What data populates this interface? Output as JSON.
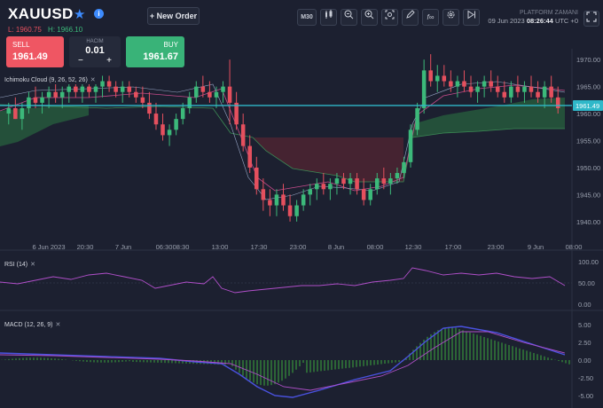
{
  "header": {
    "symbol": "XAUUSD",
    "low_label": "L: 1960.75",
    "high_label": "H: 1966.10",
    "new_order_label": "+ New Order",
    "sell": {
      "label": "SELL",
      "price": "1961.49"
    },
    "buy": {
      "label": "BUY",
      "price": "1961.67"
    },
    "lot": {
      "label": "HACIM",
      "value": "0.01",
      "minus": "−",
      "plus": "+"
    },
    "timeframe": "M30",
    "platform_label": "PLATFORM ZAMANI",
    "platform_date": "09 Jun 2023",
    "platform_clock": "08:26:44",
    "platform_tz": "UTC +0"
  },
  "toolbar_icons": [
    "timeframe-button",
    "candle-type-icon",
    "zoom-out-icon",
    "zoom-in-icon",
    "screenshot-icon",
    "draw-pencil-icon",
    "indicator-fx-icon",
    "settings-gear-icon",
    "replay-icon",
    "fullscreen-icon"
  ],
  "colors": {
    "background": "#1c2030",
    "bull": "#3cb97a",
    "bear": "#e5505e",
    "current_price_line": "#2fb8c9",
    "rsi_line": "#b04fc9",
    "macd_line": "#4a52e0",
    "signal_line": "#b04fc9",
    "hist": "#3caa3c"
  },
  "price_pane": {
    "indicator_label": "Ichimoku Cloud (9, 26, 52, 26)",
    "current_price": "1961.49",
    "y_ticks": [
      "1970.00",
      "1965.00",
      "1960.00",
      "1955.00",
      "1950.00",
      "1945.00",
      "1940.00"
    ],
    "x_ticks": [
      "6 Jun 2023",
      "20:30",
      "7 Jun",
      "06:30",
      "08:30",
      "13:00",
      "17:30",
      "23:00",
      "8 Jun",
      "08:00",
      "12:30",
      "17:00",
      "23:00",
      "9 Jun",
      "08:00"
    ]
  },
  "rsi_pane": {
    "label": "RSI (14)",
    "y_ticks": [
      "100.00",
      "50.00",
      "0.00"
    ]
  },
  "macd_pane": {
    "label": "MACD (12, 26, 9)",
    "y_ticks": [
      "5.00",
      "2.50",
      "0.00",
      "-2.50",
      "-5.00"
    ]
  },
  "chart_data": {
    "type": "candlestick",
    "symbol": "XAUUSD",
    "interval": "M30",
    "ylim": [
      1938,
      1972
    ],
    "candles": [
      [
        1960,
        1962,
        1958,
        1961
      ],
      [
        1961,
        1963,
        1959,
        1959
      ],
      [
        1959,
        1962,
        1957,
        1961
      ],
      [
        1961,
        1964,
        1960,
        1963
      ],
      [
        1963,
        1965,
        1961,
        1962
      ],
      [
        1962,
        1964,
        1960,
        1963
      ],
      [
        1963,
        1965,
        1961,
        1964
      ],
      [
        1964,
        1966,
        1962,
        1963
      ],
      [
        1963,
        1965,
        1961,
        1964
      ],
      [
        1964,
        1966,
        1962,
        1965
      ],
      [
        1965,
        1967,
        1963,
        1964
      ],
      [
        1964,
        1966,
        1962,
        1965
      ],
      [
        1965,
        1967,
        1963,
        1964
      ],
      [
        1964,
        1966,
        1962,
        1965
      ],
      [
        1965,
        1967,
        1963,
        1966
      ],
      [
        1966,
        1967,
        1964,
        1965
      ],
      [
        1965,
        1966,
        1963,
        1964
      ],
      [
        1964,
        1966,
        1962,
        1965
      ],
      [
        1965,
        1966,
        1963,
        1964
      ],
      [
        1964,
        1965,
        1962,
        1963
      ],
      [
        1963,
        1965,
        1961,
        1962
      ],
      [
        1962,
        1964,
        1959,
        1960
      ],
      [
        1960,
        1962,
        1957,
        1958
      ],
      [
        1958,
        1960,
        1955,
        1956
      ],
      [
        1956,
        1958,
        1954,
        1957
      ],
      [
        1957,
        1960,
        1956,
        1959
      ],
      [
        1959,
        1962,
        1958,
        1961
      ],
      [
        1961,
        1964,
        1960,
        1963
      ],
      [
        1963,
        1966,
        1962,
        1965
      ],
      [
        1965,
        1967,
        1963,
        1964
      ],
      [
        1964,
        1966,
        1962,
        1963
      ],
      [
        1963,
        1965,
        1961,
        1964
      ],
      [
        1964,
        1966,
        1962,
        1965
      ],
      [
        1965,
        1970,
        1958,
        1962
      ],
      [
        1962,
        1964,
        1957,
        1958
      ],
      [
        1958,
        1960,
        1953,
        1954
      ],
      [
        1954,
        1956,
        1949,
        1950
      ],
      [
        1950,
        1952,
        1945,
        1946
      ],
      [
        1946,
        1948,
        1942,
        1944
      ],
      [
        1944,
        1946,
        1941,
        1943
      ],
      [
        1943,
        1946,
        1941,
        1945
      ],
      [
        1945,
        1947,
        1942,
        1943
      ],
      [
        1943,
        1945,
        1940,
        1941
      ],
      [
        1941,
        1944,
        1940,
        1943
      ],
      [
        1943,
        1946,
        1942,
        1945
      ],
      [
        1945,
        1947,
        1943,
        1946
      ],
      [
        1946,
        1948,
        1944,
        1947
      ],
      [
        1947,
        1949,
        1945,
        1946
      ],
      [
        1946,
        1948,
        1944,
        1947
      ],
      [
        1947,
        1949,
        1945,
        1948
      ],
      [
        1948,
        1949,
        1946,
        1947
      ],
      [
        1947,
        1949,
        1945,
        1948
      ],
      [
        1948,
        1949,
        1945,
        1946
      ],
      [
        1946,
        1948,
        1943,
        1944
      ],
      [
        1944,
        1947,
        1943,
        1946
      ],
      [
        1946,
        1949,
        1945,
        1948
      ],
      [
        1948,
        1950,
        1946,
        1947
      ],
      [
        1947,
        1949,
        1945,
        1948
      ],
      [
        1948,
        1950,
        1947,
        1949
      ],
      [
        1949,
        1952,
        1948,
        1951
      ],
      [
        1951,
        1958,
        1950,
        1957
      ],
      [
        1957,
        1962,
        1956,
        1961
      ],
      [
        1961,
        1970,
        1960,
        1968
      ],
      [
        1968,
        1971,
        1965,
        1966
      ],
      [
        1966,
        1969,
        1964,
        1967
      ],
      [
        1967,
        1969,
        1965,
        1966
      ],
      [
        1966,
        1968,
        1964,
        1965
      ],
      [
        1965,
        1967,
        1963,
        1966
      ],
      [
        1966,
        1968,
        1964,
        1965
      ],
      [
        1965,
        1967,
        1963,
        1964
      ],
      [
        1964,
        1966,
        1962,
        1965
      ],
      [
        1965,
        1967,
        1963,
        1966
      ],
      [
        1966,
        1968,
        1964,
        1965
      ],
      [
        1965,
        1967,
        1963,
        1964
      ],
      [
        1964,
        1966,
        1962,
        1963
      ],
      [
        1963,
        1966,
        1962,
        1965
      ],
      [
        1965,
        1967,
        1963,
        1964
      ],
      [
        1964,
        1966,
        1962,
        1965
      ],
      [
        1965,
        1967,
        1963,
        1964
      ],
      [
        1964,
        1966,
        1962,
        1963
      ],
      [
        1963,
        1966,
        1961,
        1965
      ],
      [
        1965,
        1967,
        1962,
        1963
      ],
      [
        1963,
        1965,
        1960,
        1961
      ]
    ]
  }
}
